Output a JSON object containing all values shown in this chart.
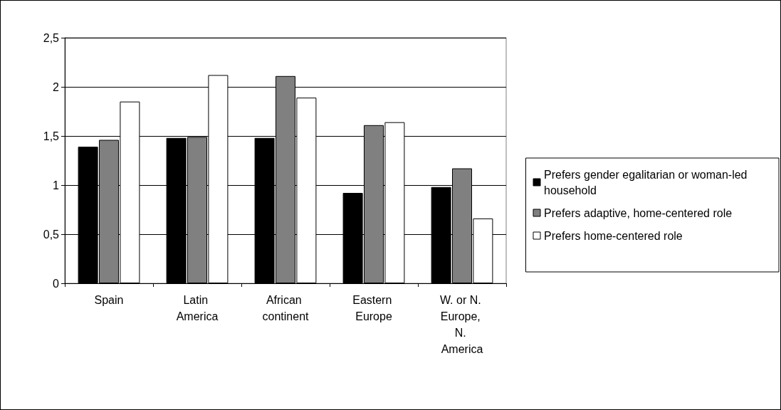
{
  "chart_data": {
    "type": "bar",
    "categories": [
      "Spain",
      "Latin America",
      "African continent",
      "Eastern Europe",
      "W. or N. Europe, N. America"
    ],
    "series": [
      {
        "name": "Prefers gender egalitarian or woman-led household",
        "color": "#000000",
        "values": [
          1.39,
          1.48,
          1.48,
          0.92,
          0.98
        ]
      },
      {
        "name": "Prefers adaptive, home-centered role",
        "color": "#808080",
        "values": [
          1.46,
          1.49,
          2.11,
          1.61,
          1.17
        ]
      },
      {
        "name": "Prefers home-centered role",
        "color": "#ffffff",
        "values": [
          1.85,
          2.12,
          1.89,
          1.64,
          0.66
        ]
      }
    ],
    "ylim": [
      0,
      2.5
    ],
    "yticks": [
      0,
      {
        "value": 0.5,
        "label": "0,5"
      },
      1,
      {
        "value": 1.5,
        "label": "1,5"
      },
      2,
      {
        "value": 2.5,
        "label": "2,5"
      }
    ],
    "grid": "y",
    "legend": "right"
  }
}
